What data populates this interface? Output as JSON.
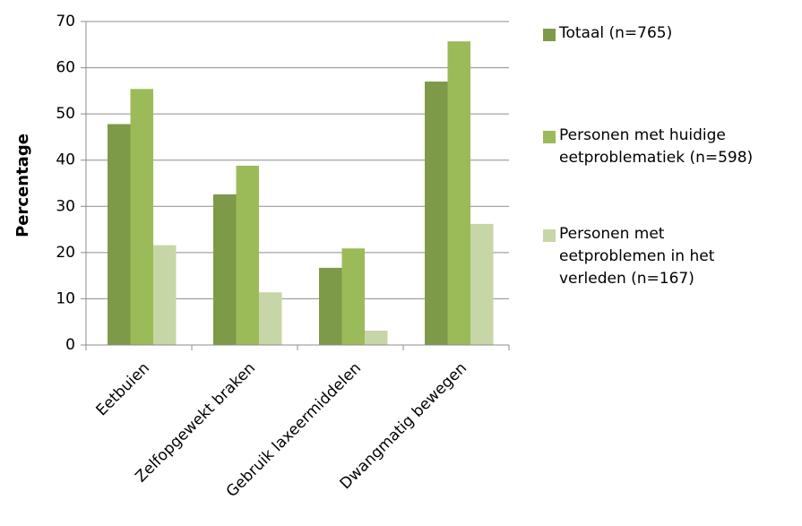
{
  "chart_data": {
    "type": "bar",
    "title": "",
    "xlabel": "",
    "ylabel": "Percentage",
    "ylim": [
      0,
      70
    ],
    "yticks": [
      0,
      10,
      20,
      30,
      40,
      50,
      60,
      70
    ],
    "grid": true,
    "legend_position": "right",
    "categories": [
      "Eetbuien",
      "Zelfopgewekt braken",
      "Gebruik laxeermiddelen",
      "Dwangmatig bewegen"
    ],
    "series": [
      {
        "name": "Totaal (n=765)",
        "legend_lines": [
          "Totaal (n=765)"
        ],
        "color": "#7d9a48",
        "values": [
          47.8,
          32.6,
          16.7,
          57.0
        ]
      },
      {
        "name": "Personen met huidige eetproblematiek (n=598)",
        "legend_lines": [
          "Personen met huidige",
          "eetproblematiek (n=598)"
        ],
        "color": "#9bbb59",
        "values": [
          55.4,
          38.8,
          20.9,
          65.7
        ]
      },
      {
        "name": "Personen met eetproblemen in het verleden (n=167)",
        "legend_lines": [
          "Personen met",
          "eetproblemen in het",
          "verleden (n=167)"
        ],
        "color": "#c6d6a6",
        "values": [
          21.6,
          11.4,
          3.1,
          26.2
        ]
      }
    ]
  }
}
